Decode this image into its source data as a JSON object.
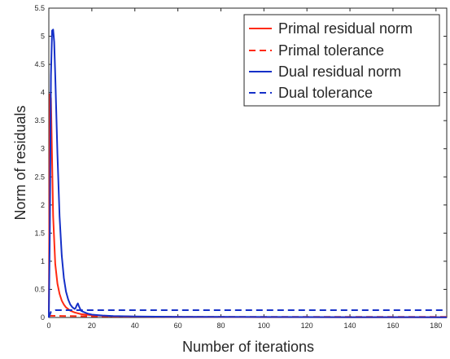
{
  "chart_data": {
    "type": "line",
    "title": "",
    "xlabel": "Number of iterations",
    "ylabel": "Norm of residuals",
    "xlim": [
      0,
      185
    ],
    "ylim": [
      0,
      5.5
    ],
    "xticks": [
      0,
      20,
      40,
      60,
      80,
      100,
      120,
      140,
      160,
      180
    ],
    "yticks": [
      0,
      0.5,
      1,
      1.5,
      2,
      2.5,
      3,
      3.5,
      4,
      4.5,
      5,
      5.5
    ],
    "grid": false,
    "legend_position": "top-right",
    "series": [
      {
        "name": "Primal residual norm",
        "color": "#ff2a12",
        "dash": "solid",
        "x": [
          0,
          0.5,
          1,
          2,
          3,
          4,
          5,
          6,
          7,
          8,
          10,
          12,
          15,
          20,
          25,
          30,
          40,
          60,
          80,
          100,
          140,
          185
        ],
        "y": [
          0,
          3.97,
          3.9,
          1.8,
          0.95,
          0.6,
          0.42,
          0.3,
          0.23,
          0.18,
          0.12,
          0.09,
          0.06,
          0.04,
          0.03,
          0.02,
          0.015,
          0.01,
          0.008,
          0.006,
          0.005,
          0.004
        ]
      },
      {
        "name": "Primal tolerance",
        "color": "#ff2a12",
        "dash": "dashed",
        "x": [
          0,
          10,
          25,
          40,
          60,
          100,
          185
        ],
        "y": [
          0.03,
          0.025,
          0.02,
          0.015,
          0.012,
          0.01,
          0.01
        ]
      },
      {
        "name": "Dual residual norm",
        "color": "#1530c8",
        "dash": "solid",
        "x": [
          0,
          0.5,
          1,
          1.5,
          2,
          2.5,
          3,
          4,
          5,
          6,
          7,
          8,
          9,
          10,
          11,
          12,
          12.5,
          13,
          13.5,
          14,
          15,
          16,
          18,
          20,
          25,
          30,
          40,
          60,
          80,
          100,
          140,
          185
        ],
        "y": [
          0,
          1.6,
          4.3,
          5.1,
          5.12,
          4.9,
          4.3,
          2.9,
          1.8,
          1.1,
          0.7,
          0.46,
          0.32,
          0.23,
          0.18,
          0.15,
          0.17,
          0.22,
          0.25,
          0.2,
          0.12,
          0.1,
          0.07,
          0.05,
          0.035,
          0.025,
          0.018,
          0.012,
          0.01,
          0.008,
          0.006,
          0.005
        ]
      },
      {
        "name": "Dual tolerance",
        "color": "#1530c8",
        "dash": "dashed",
        "x": [
          0,
          0.5,
          1,
          2,
          3,
          5,
          185
        ],
        "y": [
          0,
          0.05,
          0.1,
          0.12,
          0.13,
          0.13,
          0.13
        ]
      }
    ]
  }
}
